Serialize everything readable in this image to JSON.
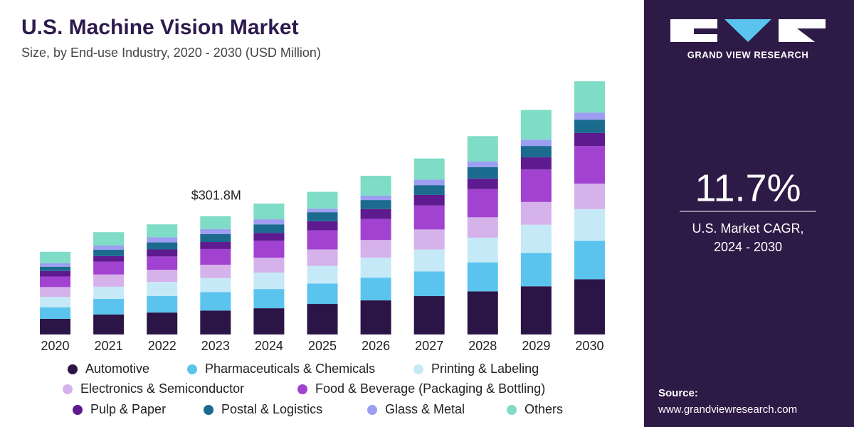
{
  "chart_data": {
    "type": "stacked_bar",
    "title": "U.S. Machine Vision Market",
    "subtitle": "Size, by End-use Industry, 2020 - 2030 (USD Million)",
    "categories": [
      "2020",
      "2021",
      "2022",
      "2023",
      "2024",
      "2025",
      "2026",
      "2027",
      "2028",
      "2029",
      "2030"
    ],
    "ylim": [
      0,
      650
    ],
    "series": [
      {
        "name": "Automotive",
        "color": "#2b1446",
        "values": [
          40,
          51,
          56,
          61,
          67,
          78,
          87,
          98,
          110,
          123,
          141
        ]
      },
      {
        "name": "Pharmaceuticals & Chemicals",
        "color": "#5bc4ee",
        "values": [
          29,
          40,
          42,
          47,
          49,
          52,
          58,
          63,
          74,
          85,
          98
        ]
      },
      {
        "name": "Printing & Labeling",
        "color": "#c6e9f8",
        "values": [
          27,
          31,
          36,
          36,
          42,
          45,
          51,
          56,
          63,
          72,
          81
        ]
      },
      {
        "name": "Electronics & Semiconductor",
        "color": "#d6b2ea",
        "values": [
          25,
          31,
          31,
          34,
          38,
          42,
          45,
          51,
          52,
          58,
          65
        ]
      },
      {
        "name": "Food & Beverage (Packaging & Bottling)",
        "color": "#a143d0",
        "values": [
          27,
          33,
          34,
          40,
          43,
          49,
          54,
          61,
          72,
          83,
          96
        ]
      },
      {
        "name": "Pulp & Paper",
        "color": "#5e1b8f",
        "values": [
          14,
          14,
          18,
          18,
          20,
          23,
          25,
          27,
          27,
          31,
          33
        ]
      },
      {
        "name": "Postal & Logistics",
        "color": "#1b6b8f",
        "values": [
          11,
          16,
          18,
          20,
          22,
          23,
          23,
          25,
          29,
          29,
          34
        ]
      },
      {
        "name": "Glass & Metal",
        "color": "#9d9ef1",
        "values": [
          9,
          11,
          13,
          13,
          13,
          9,
          11,
          14,
          14,
          16,
          18
        ]
      },
      {
        "name": "Others",
        "color": "#7edcc7",
        "values": [
          29,
          34,
          33,
          32.8,
          40,
          43,
          51,
          54,
          65,
          76,
          80
        ]
      }
    ],
    "annotations": [
      {
        "x": "2023",
        "value": 301.8,
        "label": "$301.8M"
      }
    ]
  },
  "side_panel": {
    "brand": "GRAND VIEW RESEARCH",
    "cagr": "11.7%",
    "cagr_label": [
      "U.S. Market CAGR,",
      "2024 - 2030"
    ],
    "source_label": "Source:",
    "source_url": "www.grandviewresearch.com"
  }
}
